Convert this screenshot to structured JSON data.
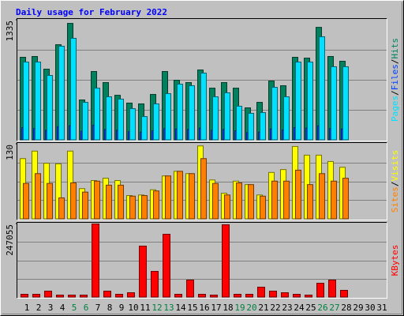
{
  "chart_data": {
    "type": "bar",
    "title": "Daily usage for February 2022",
    "categories": [
      "1",
      "2",
      "3",
      "4",
      "5",
      "6",
      "7",
      "8",
      "9",
      "10",
      "11",
      "12",
      "13",
      "14",
      "15",
      "16",
      "17",
      "18",
      "19",
      "20",
      "21",
      "22",
      "23",
      "24",
      "25",
      "26",
      "27",
      "28",
      "29",
      "30",
      "31"
    ],
    "highlight_categories": [
      "5",
      "6",
      "12",
      "13",
      "19",
      "20",
      "26",
      "27"
    ],
    "highlight_color": "#008040",
    "legend_separator": "/",
    "panels": [
      {
        "ylim": [
          0,
          1335
        ],
        "yticks": [
          1335
        ],
        "series": [
          {
            "name": "Hits",
            "color": "#00805c",
            "values": [
              922,
              931,
              790,
              1062,
              1299,
              448,
              764,
              641,
              500,
              413,
              404,
              509,
              764,
              667,
              641,
              781,
              579,
              641,
              579,
              360,
              421,
              658,
              606,
              922,
              913,
              1255,
              931,
              878,
              null,
              null,
              null
            ]
          },
          {
            "name": "Files",
            "color": "#0040ff",
            "values": [
              140,
              130,
              110,
              150,
              160,
              100,
              167,
              120,
              110,
              95,
              90,
              105,
              130,
              125,
              120,
              135,
              110,
              120,
              105,
              85,
              90,
              125,
              115,
              140,
              135,
              160,
              130,
              125,
              null,
              null,
              null
            ]
          },
          {
            "name": "Pages",
            "color": "#00e0ff",
            "values": [
              869,
              869,
              720,
              1045,
              1133,
              421,
              579,
              483,
              457,
              351,
              263,
              404,
              518,
              623,
              606,
              746,
              483,
              527,
              378,
              299,
              307,
              588,
              483,
              869,
              869,
              1150,
              817,
              817,
              null,
              null,
              null
            ]
          }
        ]
      },
      {
        "ylim": [
          0,
          130
        ],
        "yticks": [
          130
        ],
        "series": [
          {
            "name": "Visits",
            "color": "#ffff00",
            "values": [
              105,
              118,
              97,
              96,
              118,
              53,
              67,
              71,
              67,
              41,
              42,
              51,
              75,
              83,
              79,
              127,
              68,
              45,
              66,
              60,
              42,
              81,
              86,
              126,
              111,
              111,
              100,
              90,
              null,
              null,
              null
            ]
          },
          {
            "name": "Sites",
            "color": "#ff8000",
            "values": [
              62,
              79,
              62,
              37,
              63,
              47,
              66,
              59,
              59,
              40,
              41,
              49,
              75,
              83,
              79,
              105,
              62,
              42,
              63,
              60,
              40,
              66,
              66,
              85,
              60,
              79,
              66,
              71,
              null,
              null,
              null
            ]
          }
        ]
      },
      {
        "ylim": [
          0,
          247055
        ],
        "yticks": [
          247055
        ],
        "series": [
          {
            "name": "KBytes",
            "color": "#ff0000",
            "values": [
              10625,
              10625,
              21250,
              7969,
              7969,
              7969,
              247055,
              21250,
              10625,
              15937,
              172650,
              87660,
              212500,
              10625,
              58440,
              10625,
              7969,
              244400,
              10625,
              10625,
              34530,
              21250,
              15937,
              10625,
              7969,
              47810,
              58440,
              23900,
              null,
              null,
              null
            ]
          }
        ]
      }
    ]
  }
}
